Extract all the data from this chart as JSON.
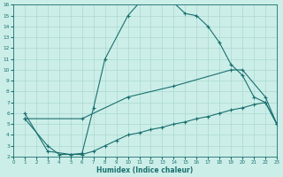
{
  "xlabel": "Humidex (Indice chaleur)",
  "xlim": [
    0,
    23
  ],
  "ylim": [
    2,
    16
  ],
  "xticks": [
    0,
    1,
    2,
    3,
    4,
    5,
    6,
    7,
    8,
    9,
    10,
    11,
    12,
    13,
    14,
    15,
    16,
    17,
    18,
    19,
    20,
    21,
    22,
    23
  ],
  "yticks": [
    2,
    3,
    4,
    5,
    6,
    7,
    8,
    9,
    10,
    11,
    12,
    13,
    14,
    15,
    16
  ],
  "background_color": "#cceee8",
  "grid_color": "#aad8d0",
  "line_color": "#1a7070",
  "curve_arch_x": [
    1,
    3,
    5,
    6,
    7,
    8,
    10,
    11,
    12,
    13,
    14,
    15,
    16,
    17,
    18,
    19,
    20,
    21,
    22,
    23
  ],
  "curve_arch_y": [
    6,
    2.5,
    2.2,
    2.3,
    6.5,
    11.0,
    15.0,
    16.2,
    16.5,
    16.3,
    16.2,
    15.2,
    15.0,
    14.0,
    12.5,
    10.5,
    9.5,
    7.5,
    7.0,
    5.0
  ],
  "curve_diag_x": [
    1,
    6,
    10,
    14,
    19,
    20,
    22,
    23
  ],
  "curve_diag_y": [
    5.5,
    5.5,
    7.5,
    8.5,
    10.0,
    10.0,
    7.5,
    5.0
  ],
  "curve_flat_x": [
    1,
    3,
    4,
    5,
    6,
    7,
    8,
    9,
    10,
    11,
    12,
    13,
    14,
    15,
    16,
    17,
    18,
    19,
    20,
    21,
    22,
    23
  ],
  "curve_flat_y": [
    5.5,
    3.0,
    2.2,
    2.2,
    2.2,
    2.5,
    3.0,
    3.5,
    4.0,
    4.2,
    4.5,
    4.7,
    5.0,
    5.2,
    5.5,
    5.7,
    6.0,
    6.3,
    6.5,
    6.8,
    7.0,
    5.0
  ]
}
